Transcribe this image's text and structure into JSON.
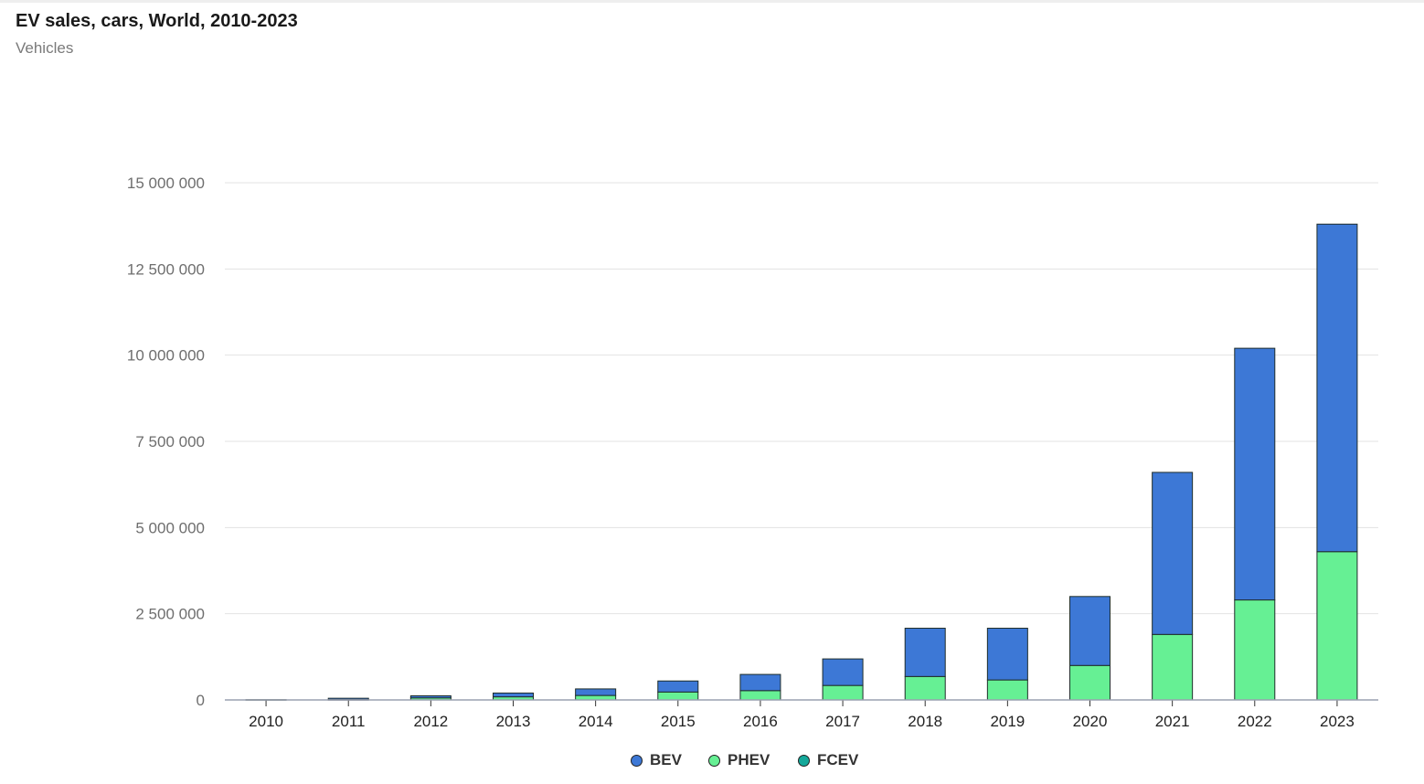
{
  "header": {
    "title": "EV sales, cars, World, 2010-2023",
    "subtitle": "Vehicles"
  },
  "colors": {
    "BEV": "#3d78d6",
    "PHEV": "#66f094",
    "FCEV": "#14a89a",
    "grid": "#e3e3e3",
    "axis": "#9aa0b0",
    "tick_text": "#6e6e6e"
  },
  "chart_data": {
    "type": "bar",
    "stacked": true,
    "title": "EV sales, cars, World, 2010-2023",
    "subtitle": "Vehicles",
    "categories": [
      "2010",
      "2011",
      "2012",
      "2013",
      "2014",
      "2015",
      "2016",
      "2017",
      "2018",
      "2019",
      "2020",
      "2021",
      "2022",
      "2023"
    ],
    "series": [
      {
        "name": "PHEV",
        "values": [
          0,
          9000,
          60000,
          90000,
          130000,
          230000,
          270000,
          420000,
          680000,
          580000,
          1000000,
          1900000,
          2900000,
          4300000
        ]
      },
      {
        "name": "BEV",
        "values": [
          7000,
          40000,
          60000,
          110000,
          190000,
          320000,
          470000,
          770000,
          1400000,
          1500000,
          2000000,
          4700000,
          7300000,
          9500000
        ]
      },
      {
        "name": "FCEV",
        "values": [
          0,
          0,
          0,
          0,
          0,
          0,
          0,
          0,
          0,
          0,
          0,
          0,
          0,
          0
        ]
      }
    ],
    "y_ticks": [
      "0",
      "2 500 000",
      "5 000 000",
      "7 500 000",
      "10 000 000",
      "12 500 000",
      "15 000 000"
    ],
    "y_tick_values": [
      0,
      2500000,
      5000000,
      7500000,
      10000000,
      12500000,
      15000000
    ],
    "ylim": [
      0,
      15000000
    ],
    "grid": true,
    "legend": {
      "position": "bottom-center",
      "entries": [
        "BEV",
        "PHEV",
        "FCEV"
      ]
    }
  }
}
